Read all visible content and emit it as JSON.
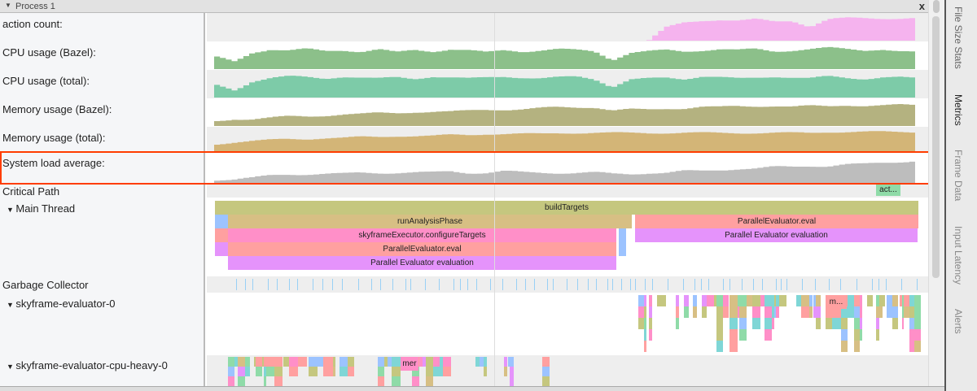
{
  "header": {
    "title": "Process 1",
    "close": "x"
  },
  "counters": [
    {
      "label": "action count:",
      "color": "#f5b3ee",
      "levels": [
        0,
        0,
        0,
        0,
        0,
        0,
        0,
        0,
        0,
        0,
        0,
        0,
        0,
        0,
        0,
        0,
        0,
        0,
        0,
        0,
        0,
        0,
        0,
        0,
        0,
        0.55,
        0.75,
        0.85,
        0.9,
        0.85,
        0.9,
        0.8,
        0.85,
        0.6,
        0.9,
        0.95,
        0.95,
        0.95,
        0.95,
        0.95
      ]
    },
    {
      "label": "CPU usage (Bazel):",
      "color": "#8cc08a",
      "levels": [
        0.5,
        0.3,
        0.7,
        0.85,
        0.8,
        0.85,
        0.75,
        0.8,
        0.75,
        0.85,
        0.7,
        0.8,
        0.75,
        0.85,
        0.8,
        0.7,
        0.8,
        0.75,
        0.8,
        0.85,
        0.8,
        0.75,
        0.4,
        0.7,
        0.75,
        0.8,
        0.75,
        0.8,
        0.85,
        0.8,
        0.85,
        0.75,
        0.8,
        0.85,
        0.9,
        0.85,
        0.8,
        0.85,
        0.75,
        0.7
      ]
    },
    {
      "label": "CPU usage (total):",
      "color": "#7dcba8",
      "levels": [
        0.5,
        0.3,
        0.7,
        0.85,
        0.9,
        0.85,
        0.8,
        0.9,
        0.85,
        0.8,
        0.85,
        0.8,
        0.9,
        0.85,
        0.8,
        0.85,
        0.9,
        0.85,
        0.8,
        0.85,
        0.9,
        0.8,
        0.45,
        0.75,
        0.8,
        0.85,
        0.8,
        0.9,
        0.85,
        0.8,
        0.85,
        0.9,
        0.85,
        0.8,
        0.9,
        0.85,
        0.8,
        0.85,
        0.85,
        0.8
      ]
    },
    {
      "label": "Memory usage (Bazel):",
      "color": "#b4b280",
      "levels": [
        0.2,
        0.3,
        0.3,
        0.35,
        0.4,
        0.4,
        0.45,
        0.5,
        0.5,
        0.55,
        0.55,
        0.6,
        0.6,
        0.6,
        0.65,
        0.7,
        0.7,
        0.7,
        0.75,
        0.8,
        0.8,
        0.8,
        0.65,
        0.7,
        0.7,
        0.75,
        0.75,
        0.8,
        0.8,
        0.85,
        0.85,
        0.85,
        0.8,
        0.85,
        0.85,
        0.9,
        0.85,
        0.85,
        0.9,
        0.9
      ]
    },
    {
      "label": "Memory usage (total):",
      "color": "#d3b577",
      "levels": [
        0.35,
        0.45,
        0.5,
        0.55,
        0.6,
        0.6,
        0.65,
        0.65,
        0.7,
        0.7,
        0.75,
        0.75,
        0.75,
        0.8,
        0.8,
        0.85,
        0.85,
        0.85,
        0.85,
        0.9,
        0.9,
        0.9,
        0.9,
        0.9,
        0.9,
        0.9,
        0.9,
        0.9,
        0.9,
        0.9,
        0.9,
        0.9,
        0.9,
        0.9,
        0.95,
        0.95,
        0.95,
        0.95,
        0.95,
        0.95
      ]
    },
    {
      "label": "System load average:",
      "color": "#bdbdbd",
      "levels": [
        0.15,
        0.15,
        0.2,
        0.3,
        0.35,
        0.35,
        0.35,
        0.35,
        0.4,
        0.4,
        0.4,
        0.4,
        0.4,
        0.45,
        0.4,
        0.4,
        0.45,
        0.4,
        0.4,
        0.4,
        0.4,
        0.4,
        0.35,
        0.35,
        0.4,
        0.4,
        0.45,
        0.45,
        0.5,
        0.55,
        0.55,
        0.6,
        0.6,
        0.65,
        0.65,
        0.7,
        0.7,
        0.75,
        0.8,
        0.85
      ]
    }
  ],
  "threads": {
    "critical_path": "Critical Path",
    "critical_slice": "act...",
    "main_thread": "Main Thread",
    "garbage_collector": "Garbage Collector",
    "evaluator0": "skyframe-evaluator-0",
    "evaluator0_slice": "m...",
    "cpu_heavy": "skyframe-evaluator-cpu-heavy-0",
    "cpu_heavy_slice": "mer"
  },
  "slices": {
    "build_targets": "buildTargets",
    "run_analysis": "runAnalysisPhase",
    "configure_targets": "skyframeExecutor.configureTargets",
    "pe_eval": "ParallelEvaluator.eval",
    "pe_evaluation": "Parallel Evaluator evaluation"
  },
  "side_tabs": [
    "File Size Stats",
    "Metrics",
    "Frame Data",
    "Input Latency",
    "Alerts"
  ],
  "colors": {
    "highlight": "#ff3d00",
    "build": "#c5c77f",
    "analysis": "#d7bf84",
    "configure": "#ff8fc8",
    "eval": "#ffa0a0",
    "evaluation": "#e593fb",
    "gc": "#99d0f5"
  }
}
